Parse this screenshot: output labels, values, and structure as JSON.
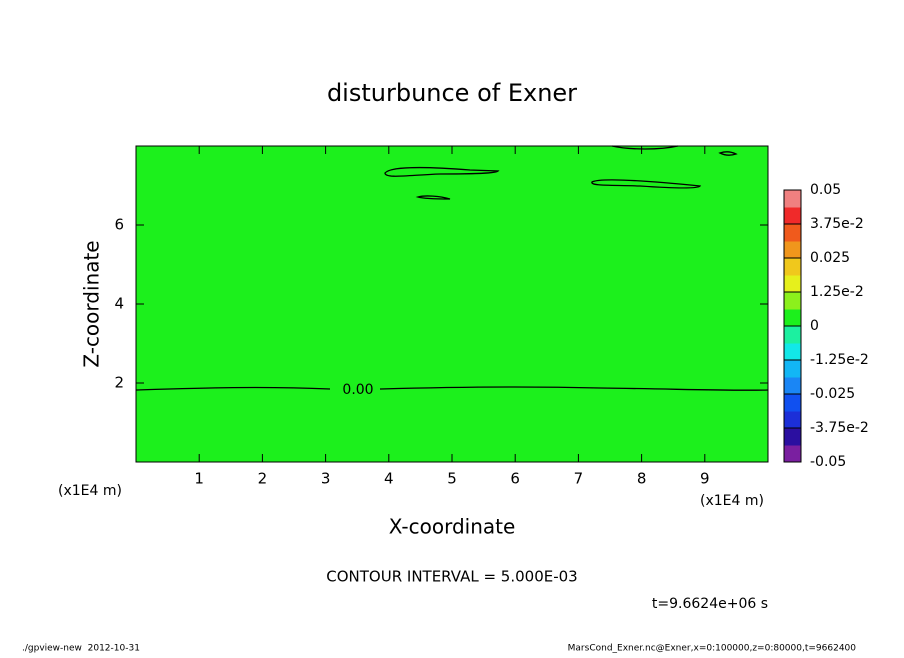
{
  "chart_data": {
    "type": "contour",
    "title": "disturbunce of Exner",
    "x_label": "X-coordinate",
    "y_label": "Z-coordinate",
    "x_unit": "(x1E4 m)",
    "y_unit": "(x1E4 m)",
    "xlim": [
      0,
      10
    ],
    "ylim": [
      0,
      8
    ],
    "xticks": [
      1,
      2,
      3,
      4,
      5,
      6,
      7,
      8,
      9
    ],
    "yticks": [
      2,
      4,
      6
    ],
    "fill_color": "#1cf01c",
    "contour_label": "0.00",
    "contour_note": "CONTOUR INTERVAL = 5.000E-03",
    "time_label": "t=9.6624e+06 s",
    "footer_left": "./gpview-new  2012-10-31",
    "footer_right": "MarsCond_Exner.nc@Exner,x=0:100000,z=0:80000,t=9662400",
    "colorbar": {
      "lim": [
        -0.05,
        0.05
      ],
      "ticks": [
        0.05,
        {
          "value": 0.0375,
          "label": "3.75e-2"
        },
        0.025,
        {
          "value": 0.0125,
          "label": "1.25e-2"
        },
        0,
        {
          "value": -0.0125,
          "label": "-1.25e-2"
        },
        -0.025,
        {
          "value": -0.0375,
          "label": "-3.75e-2"
        },
        -0.05
      ],
      "colors": [
        "#7a1fa0",
        "#2b0fa0",
        "#1c2fd8",
        "#1050f0",
        "#1a86f5",
        "#12b6f5",
        "#12e8e8",
        "#1cf0a0",
        "#1cf01c",
        "#8cf01c",
        "#e6f01c",
        "#f0c81c",
        "#f0961c",
        "#f05a1c",
        "#f02a2a",
        "#f08080"
      ]
    }
  }
}
